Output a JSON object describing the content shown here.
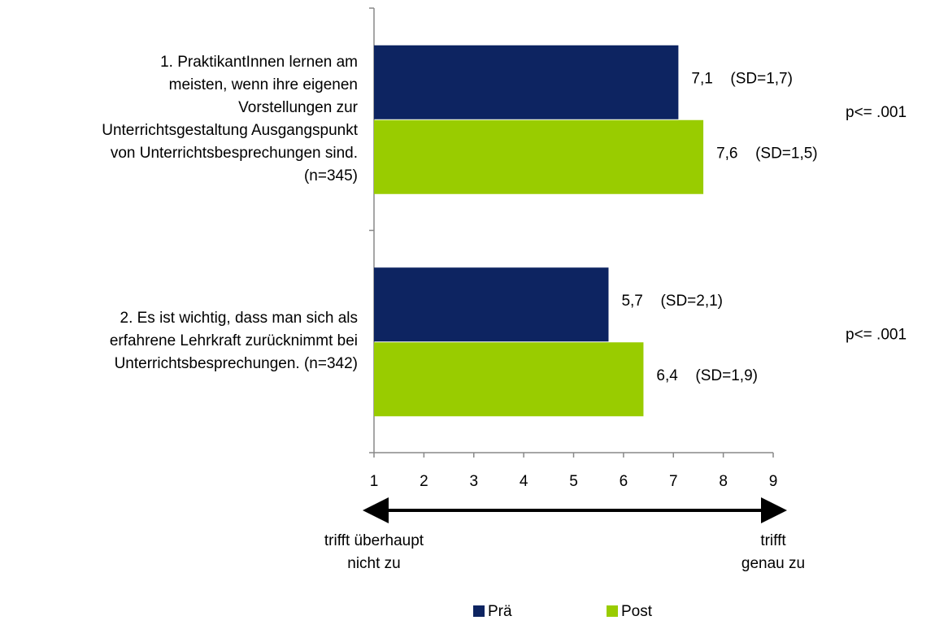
{
  "chart_data": {
    "type": "bar",
    "orientation": "horizontal",
    "categories": [
      "1. PraktikantInnen lernen am\nmeisten, wenn ihre eigenen\nVorstellungen zur\nUnterrichtsgestaltung Ausgangspunkt\nvon Unterrichtsbesprechungen sind.\n(n=345)",
      "2. Es ist wichtig, dass man sich als\nerfahrene Lehrkraft zurücknimmt bei\nUnterrichtsbesprechungen. (n=342)"
    ],
    "series": [
      {
        "name": "Prä",
        "color": "#0d2461",
        "values": [
          7.1,
          5.7
        ],
        "value_labels": [
          "7,1",
          "5,7"
        ],
        "sd_labels": [
          "(SD=1,7)",
          "(SD=2,1)"
        ]
      },
      {
        "name": "Post",
        "color": "#99cc00",
        "values": [
          7.6,
          6.4
        ],
        "value_labels": [
          "7,6",
          "6,4"
        ],
        "sd_labels": [
          "(SD=1,5)",
          "(SD=1,9)"
        ]
      }
    ],
    "p_labels": [
      "p<= .001",
      "p<= .001"
    ],
    "xlim": [
      1,
      9
    ],
    "xticks": [
      1,
      2,
      3,
      4,
      5,
      6,
      7,
      8,
      9
    ],
    "scale_labels": [
      "trifft überhaupt\nnicht zu",
      "trifft\ngenau zu"
    ],
    "legend": "bottom"
  }
}
